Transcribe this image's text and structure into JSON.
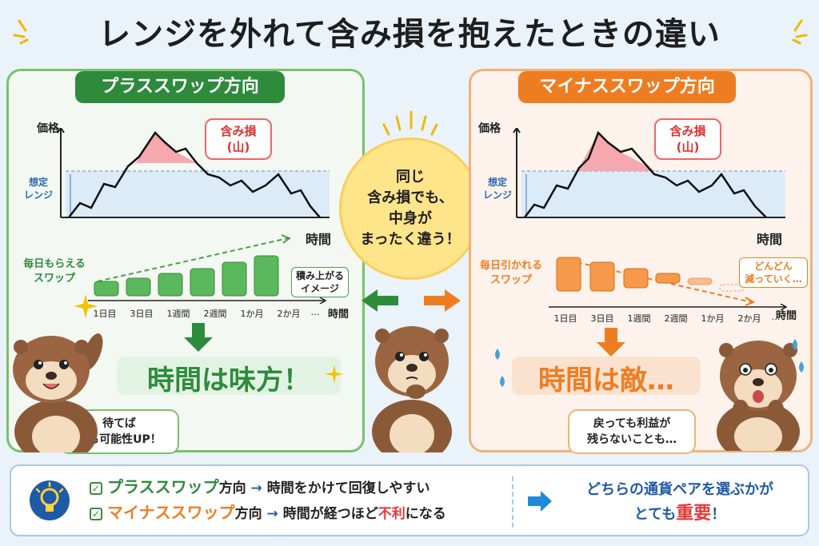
{
  "title": "レンジを外れて含み損を抱えたときの違い",
  "colors": {
    "green": "#2e8b3c",
    "orange": "#ee7d22",
    "red": "#e03a3a",
    "blue": "#2a6ab3"
  },
  "left": {
    "heading": "プラススワップ方向",
    "y_label": "価格",
    "x_label": "時間",
    "range_label_1": "想定",
    "range_label_2": "レンジ",
    "loss_bubble_1": "含み損",
    "loss_bubble_2": "(山)",
    "swap_label_1": "毎日もらえる",
    "swap_label_2": "スワップ",
    "accumulate_1": "積み上がる",
    "accumulate_2": "イメージ",
    "ticks": [
      "1日目",
      "3日目",
      "1週間",
      "2週間",
      "1か月",
      "2か月",
      "…"
    ],
    "time_label": "時間",
    "verdict": "時間は味方！",
    "speech_1": "待てば",
    "speech_2": "戻る可能性UP！"
  },
  "right": {
    "heading": "マイナススワップ方向",
    "y_label": "価格",
    "x_label": "時間",
    "range_label_1": "想定",
    "range_label_2": "レンジ",
    "loss_bubble_1": "含み損",
    "loss_bubble_2": "(山)",
    "swap_label_1": "毎日引かれる",
    "swap_label_2": "スワップ",
    "decrease_1": "どんどん",
    "decrease_2": "減っていく…",
    "ticks": [
      "1日目",
      "3日目",
      "1週間",
      "2週間",
      "1か月",
      "2か月",
      "…"
    ],
    "time_label": "時間",
    "verdict": "時間は敵…",
    "speech_1": "戻っても利益が",
    "speech_2": "残らないことも…"
  },
  "center": {
    "line1": "同じ",
    "line2": "含み損でも、",
    "line3": "中身が",
    "line4": "まったく違う！"
  },
  "bottom": {
    "row1_term": "プラススワップ",
    "row1_suffix": "方向",
    "row1_arrow": "→",
    "row1_text": "時間をかけて回復しやすい",
    "row2_term": "マイナススワップ",
    "row2_suffix": "方向",
    "row2_arrow": "→",
    "row2_text_a": "時間が経つほど",
    "row2_text_b": "不利",
    "row2_text_c": "になる",
    "conclusion_1": "どちらの通貨ペアを選ぶかが",
    "conclusion_2a": "とても",
    "conclusion_2b": "重要",
    "conclusion_2c": "！"
  }
}
